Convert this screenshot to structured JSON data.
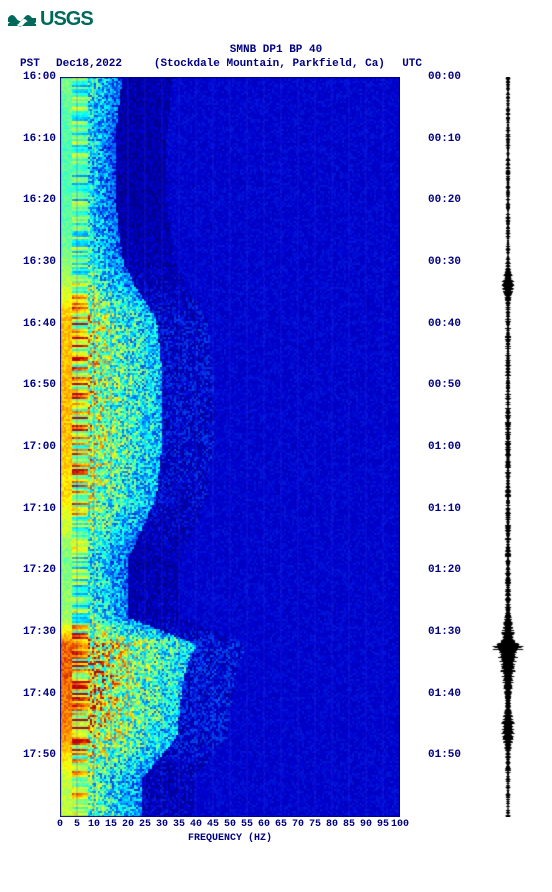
{
  "logo_text": "USGS",
  "title": {
    "line1": "SMNB DP1 BP 40",
    "line2_left": "PST",
    "line2_date": "Dec18,2022",
    "line2_station": "(Stockdale Mountain, Parkfield, Ca)",
    "line2_right": "UTC"
  },
  "spectrogram": {
    "type": "spectrogram",
    "x_label": "FREQUENCY (HZ)",
    "x_ticks": [
      0,
      5,
      10,
      15,
      20,
      25,
      30,
      35,
      40,
      45,
      50,
      55,
      60,
      65,
      70,
      75,
      80,
      85,
      90,
      95,
      100
    ],
    "xlim": [
      0,
      100
    ],
    "y_left_ticks": [
      "16:00",
      "16:10",
      "16:20",
      "16:30",
      "16:40",
      "16:50",
      "17:00",
      "17:10",
      "17:20",
      "17:30",
      "17:40",
      "17:50"
    ],
    "y_right_ticks": [
      "00:00",
      "00:10",
      "00:20",
      "00:30",
      "00:40",
      "00:50",
      "01:00",
      "01:10",
      "01:20",
      "01:30",
      "01:40",
      "01:50"
    ],
    "n_rows": 12,
    "left_label_fontsize": 11,
    "right_label_fontsize": 11,
    "x_label_fontsize": 10,
    "background_color": "#0000d0",
    "grid_color": "#3030f0",
    "colormap": {
      "stops": [
        {
          "v": 0.0,
          "c": "#000060"
        },
        {
          "v": 0.15,
          "c": "#0000d0"
        },
        {
          "v": 0.3,
          "c": "#0080ff"
        },
        {
          "v": 0.45,
          "c": "#00ffff"
        },
        {
          "v": 0.6,
          "c": "#80ff80"
        },
        {
          "v": 0.75,
          "c": "#ffff00"
        },
        {
          "v": 0.88,
          "c": "#ff8000"
        },
        {
          "v": 1.0,
          "c": "#c00000"
        }
      ]
    },
    "low_freq_band_hz": [
      0,
      8
    ],
    "mid_freq_band_hz": [
      8,
      30
    ],
    "activity_rows": [
      {
        "t": 0,
        "intensity": 0.6,
        "spread": 18
      },
      {
        "t": 60,
        "intensity": 0.55,
        "spread": 16
      },
      {
        "t": 120,
        "intensity": 0.55,
        "spread": 16
      },
      {
        "t": 180,
        "intensity": 0.6,
        "spread": 18
      },
      {
        "t": 210,
        "intensity": 0.7,
        "spread": 22
      },
      {
        "t": 240,
        "intensity": 0.85,
        "spread": 28
      },
      {
        "t": 300,
        "intensity": 0.85,
        "spread": 30
      },
      {
        "t": 360,
        "intensity": 0.85,
        "spread": 30
      },
      {
        "t": 420,
        "intensity": 0.8,
        "spread": 28
      },
      {
        "t": 480,
        "intensity": 0.6,
        "spread": 20
      },
      {
        "t": 540,
        "intensity": 0.65,
        "spread": 20
      },
      {
        "t": 567,
        "intensity": 0.95,
        "spread": 40
      },
      {
        "t": 580,
        "intensity": 0.95,
        "spread": 38
      },
      {
        "t": 600,
        "intensity": 0.95,
        "spread": 36
      },
      {
        "t": 660,
        "intensity": 0.9,
        "spread": 34
      },
      {
        "t": 700,
        "intensity": 0.7,
        "spread": 24
      },
      {
        "t": 740,
        "intensity": 0.7,
        "spread": 24
      }
    ]
  },
  "waveform": {
    "type": "seismogram",
    "color": "#000000",
    "base_amplitude": 4,
    "events": [
      {
        "t": 0.28,
        "amp": 10,
        "dur": 0.03
      },
      {
        "t": 0.77,
        "amp": 28,
        "dur": 0.01
      },
      {
        "t": 0.78,
        "amp": 14,
        "dur": 0.08
      },
      {
        "t": 0.88,
        "amp": 10,
        "dur": 0.05
      }
    ]
  },
  "colors": {
    "text": "#000080",
    "logo": "#00695c",
    "background": "#ffffff"
  }
}
